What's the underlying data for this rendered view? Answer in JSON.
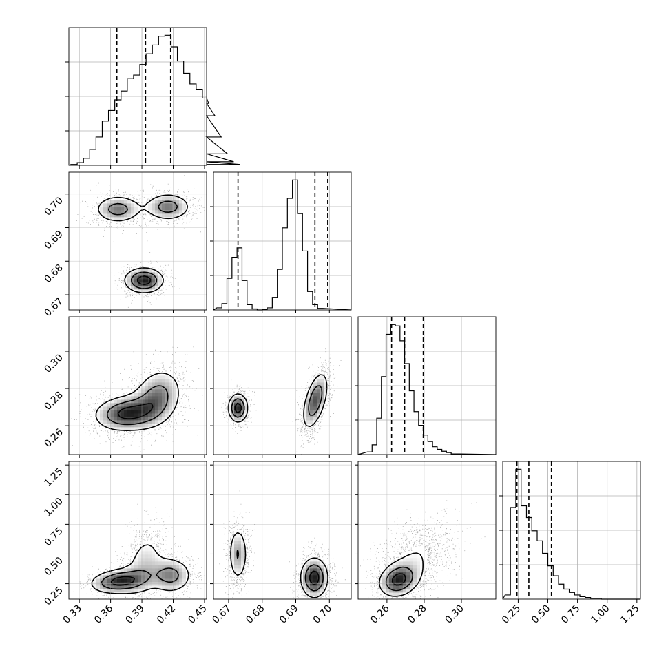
{
  "chart_data": {
    "type": "corner",
    "parameters": [
      {
        "ticks": [
          0.33,
          0.36,
          0.39,
          0.42,
          0.45
        ],
        "tick_labels": [
          "0.33",
          "0.36",
          "0.39",
          "0.42",
          "0.45"
        ],
        "range": [
          0.32,
          0.452
        ],
        "quantiles": [
          0.366,
          0.3935,
          0.4175
        ]
      },
      {
        "ticks": [
          0.67,
          0.68,
          0.69,
          0.7
        ],
        "tick_labels": [
          "0.67",
          "0.68",
          "0.69",
          "0.70"
        ],
        "range": [
          0.6655,
          0.7065
        ],
        "quantiles": [
          0.6728,
          0.6957,
          0.6995
        ]
      },
      {
        "ticks": [
          0.26,
          0.28,
          0.3
        ],
        "tick_labels": [
          "0.26",
          "0.28",
          "0.30"
        ],
        "range": [
          0.2445,
          0.3185
        ],
        "quantiles": [
          0.2625,
          0.2695,
          0.2795
        ]
      },
      {
        "ticks": [
          0.25,
          0.5,
          0.75,
          1.0,
          1.25
        ],
        "tick_labels": [
          "0.25",
          "0.50",
          "0.75",
          "1.00",
          "1.25"
        ],
        "range": [
          0.12,
          1.28
        ],
        "quantiles": [
          0.24,
          0.34,
          0.53
        ]
      }
    ],
    "histograms": [
      {
        "param": 0,
        "bin_start": 0.322,
        "bin_width": 0.006,
        "counts": [
          1,
          3,
          8,
          18,
          32,
          50,
          62,
          74,
          84,
          98,
          102,
          114,
          126,
          136,
          146,
          147,
          134,
          118,
          104,
          92,
          86,
          76,
          70,
          56,
          32,
          13,
          4,
          1
        ]
      },
      {
        "param": 1,
        "bin_start": 0.6665,
        "bin_width": 0.0015,
        "counts": [
          4,
          12,
          60,
          100,
          118,
          56,
          10,
          2,
          0,
          1,
          4,
          24,
          77,
          156,
          212,
          247,
          183,
          112,
          35,
          10,
          3
        ]
      },
      {
        "param": 2,
        "bin_start": 0.2495,
        "bin_width": 0.0025,
        "counts": [
          4,
          15,
          56,
          120,
          185,
          200,
          198,
          175,
          140,
          98,
          66,
          45,
          30,
          20,
          12,
          8,
          5,
          3,
          1,
          1
        ]
      },
      {
        "param": 3,
        "bin_start": 0.14,
        "bin_width": 0.045,
        "counts": [
          5,
          110,
          156,
          112,
          98,
          82,
          70,
          55,
          40,
          28,
          18,
          12,
          8,
          5,
          3,
          2,
          1,
          1,
          0,
          0
        ]
      }
    ],
    "joint_densities": [
      {
        "x_param": 0,
        "y_param": 1,
        "components": [
          {
            "mx": 0.367,
            "my": 0.6955,
            "sx": 0.013,
            "sy": 0.0024,
            "rho": 0.0,
            "w": 0.32
          },
          {
            "mx": 0.415,
            "my": 0.6962,
            "sx": 0.013,
            "sy": 0.0024,
            "rho": 0.0,
            "w": 0.32
          },
          {
            "mx": 0.392,
            "my": 0.6743,
            "sx": 0.011,
            "sy": 0.0022,
            "rho": 0.0,
            "w": 0.36
          }
        ]
      },
      {
        "x_param": 0,
        "y_param": 2,
        "components": [
          {
            "mx": 0.375,
            "my": 0.2665,
            "sx": 0.018,
            "sy": 0.0055,
            "rho": 0.1,
            "w": 0.52
          },
          {
            "mx": 0.405,
            "my": 0.2755,
            "sx": 0.014,
            "sy": 0.009,
            "rho": 0.2,
            "w": 0.48
          }
        ]
      },
      {
        "x_param": 1,
        "y_param": 2,
        "components": [
          {
            "mx": 0.6728,
            "my": 0.2695,
            "sx": 0.0017,
            "sy": 0.0045,
            "rho": 0.0,
            "w": 0.36
          },
          {
            "mx": 0.6958,
            "my": 0.2735,
            "sx": 0.0022,
            "sy": 0.009,
            "rho": 0.55,
            "w": 0.64
          }
        ]
      },
      {
        "x_param": 0,
        "y_param": 3,
        "components": [
          {
            "mx": 0.368,
            "my": 0.27,
            "sx": 0.016,
            "sy": 0.06,
            "rho": 0.2,
            "w": 0.38
          },
          {
            "mx": 0.392,
            "my": 0.42,
            "sx": 0.012,
            "sy": 0.18,
            "rho": 0.3,
            "w": 0.32
          },
          {
            "mx": 0.418,
            "my": 0.32,
            "sx": 0.012,
            "sy": 0.09,
            "rho": 0.0,
            "w": 0.3
          }
        ]
      },
      {
        "x_param": 1,
        "y_param": 3,
        "components": [
          {
            "mx": 0.6728,
            "my": 0.5,
            "sx": 0.0017,
            "sy": 0.14,
            "rho": 0.0,
            "w": 0.36
          },
          {
            "mx": 0.6955,
            "my": 0.3,
            "sx": 0.0024,
            "sy": 0.1,
            "rho": 0.0,
            "w": 0.64
          }
        ]
      },
      {
        "x_param": 2,
        "y_param": 3,
        "components": [
          {
            "mx": 0.266,
            "my": 0.28,
            "sx": 0.006,
            "sy": 0.08,
            "rho": 0.2,
            "w": 0.5
          },
          {
            "mx": 0.275,
            "my": 0.45,
            "sx": 0.01,
            "sy": 0.17,
            "rho": 0.35,
            "w": 0.5
          }
        ]
      }
    ],
    "contour_levels": [
      0.25,
      0.55,
      0.85
    ],
    "xlabel": "",
    "ylabel": "",
    "title": ""
  }
}
